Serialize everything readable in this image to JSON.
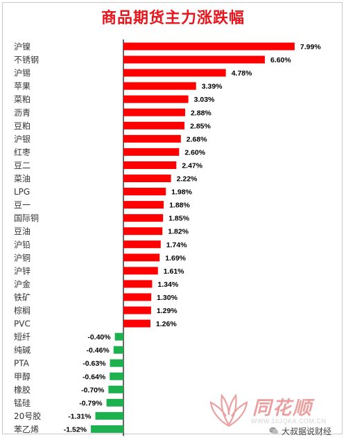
{
  "chart_data": {
    "type": "bar",
    "orientation": "horizontal",
    "title": "商品期货主力涨跌幅",
    "categories": [
      "沪镍",
      "不锈钢",
      "沪锡",
      "苹果",
      "菜粕",
      "沥青",
      "豆粕",
      "沪银",
      "红枣",
      "豆二",
      "菜油",
      "LPG",
      "豆一",
      "国际铜",
      "豆油",
      "沪铅",
      "沪铜",
      "沪锌",
      "沪金",
      "铁矿",
      "棕榈",
      "PVC",
      "短纤",
      "纯碱",
      "PTA",
      "甲醇",
      "橡胶",
      "锰硅",
      "20号胶",
      "苯乙烯"
    ],
    "values": [
      7.99,
      6.6,
      4.78,
      3.39,
      3.03,
      2.88,
      2.85,
      2.68,
      2.6,
      2.47,
      2.22,
      1.98,
      1.88,
      1.85,
      1.82,
      1.74,
      1.69,
      1.61,
      1.34,
      1.3,
      1.29,
      1.26,
      -0.4,
      -0.46,
      -0.63,
      -0.64,
      -0.7,
      -0.79,
      -1.31,
      -1.52
    ],
    "labels": [
      "7.99%",
      "6.60%",
      "4.78%",
      "3.39%",
      "3.03%",
      "2.88%",
      "2.85%",
      "2.68%",
      "2.60%",
      "2.47%",
      "2.22%",
      "1.98%",
      "1.88%",
      "1.85%",
      "1.82%",
      "1.74%",
      "1.69%",
      "1.61%",
      "1.34%",
      "1.30%",
      "1.29%",
      "1.26%",
      "-0.40%",
      "-0.46%",
      "-0.63%",
      "-0.64%",
      "-0.70%",
      "-0.79%",
      "-1.31%",
      "-1.52%"
    ],
    "colors": {
      "positive": "#ff0000",
      "negative": "#1db04f",
      "axis": "#000000"
    }
  },
  "watermark": {
    "brand": "同花顺",
    "url": "WWW.10JQKA.COM.CN",
    "icon": "tonghuashun-logo-icon"
  },
  "footer": {
    "source": "大叔据说财经",
    "icon": "wechat-icon"
  }
}
